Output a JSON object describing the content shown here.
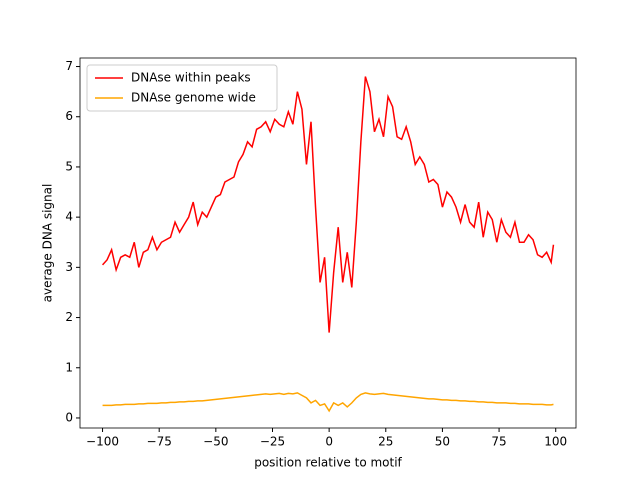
{
  "chart_data": {
    "type": "line",
    "xlabel": "position relative to motif",
    "ylabel": "average DNA signal",
    "x": [
      -100,
      -98,
      -96,
      -94,
      -92,
      -90,
      -88,
      -86,
      -84,
      -82,
      -80,
      -78,
      -76,
      -74,
      -72,
      -70,
      -68,
      -66,
      -64,
      -62,
      -60,
      -58,
      -56,
      -54,
      -52,
      -50,
      -48,
      -46,
      -44,
      -42,
      -40,
      -38,
      -36,
      -34,
      -32,
      -30,
      -28,
      -26,
      -24,
      -22,
      -20,
      -18,
      -16,
      -14,
      -12,
      -10,
      -8,
      -6,
      -4,
      -2,
      0,
      2,
      4,
      6,
      8,
      10,
      12,
      14,
      16,
      18,
      20,
      22,
      24,
      26,
      28,
      30,
      32,
      34,
      36,
      38,
      40,
      42,
      44,
      46,
      48,
      50,
      52,
      54,
      56,
      58,
      60,
      62,
      64,
      66,
      68,
      70,
      72,
      74,
      76,
      78,
      80,
      82,
      84,
      86,
      88,
      90,
      92,
      94,
      96,
      98,
      99
    ],
    "series": [
      {
        "name": "DNAse within peaks",
        "color": "#ff0000",
        "values": [
          3.05,
          3.15,
          3.35,
          2.95,
          3.2,
          3.25,
          3.2,
          3.5,
          3.0,
          3.3,
          3.35,
          3.6,
          3.35,
          3.5,
          3.55,
          3.6,
          3.9,
          3.7,
          3.85,
          4.0,
          4.3,
          3.85,
          4.1,
          4.0,
          4.2,
          4.4,
          4.45,
          4.7,
          4.75,
          4.8,
          5.1,
          5.25,
          5.5,
          5.4,
          5.75,
          5.8,
          5.9,
          5.7,
          5.95,
          5.85,
          5.8,
          6.1,
          5.85,
          6.5,
          6.15,
          5.05,
          5.9,
          4.2,
          2.7,
          3.2,
          1.7,
          2.9,
          3.8,
          2.7,
          3.3,
          2.6,
          3.9,
          5.5,
          6.8,
          6.5,
          5.7,
          5.95,
          5.6,
          6.4,
          6.2,
          5.6,
          5.55,
          5.8,
          5.5,
          5.05,
          5.2,
          5.05,
          4.7,
          4.75,
          4.65,
          4.2,
          4.5,
          4.4,
          4.2,
          3.9,
          4.25,
          3.9,
          3.8,
          4.3,
          3.6,
          4.1,
          3.95,
          3.5,
          3.95,
          3.7,
          3.6,
          3.9,
          3.5,
          3.5,
          3.65,
          3.55,
          3.25,
          3.2,
          3.3,
          3.1,
          3.45
        ]
      },
      {
        "name": "DNAse genome wide",
        "color": "#ffa500",
        "values": [
          0.25,
          0.25,
          0.25,
          0.26,
          0.26,
          0.27,
          0.27,
          0.27,
          0.28,
          0.28,
          0.29,
          0.29,
          0.29,
          0.3,
          0.3,
          0.31,
          0.31,
          0.32,
          0.32,
          0.33,
          0.33,
          0.34,
          0.34,
          0.35,
          0.36,
          0.37,
          0.38,
          0.39,
          0.4,
          0.41,
          0.42,
          0.43,
          0.44,
          0.45,
          0.46,
          0.47,
          0.48,
          0.47,
          0.48,
          0.49,
          0.47,
          0.49,
          0.48,
          0.5,
          0.45,
          0.4,
          0.3,
          0.35,
          0.25,
          0.28,
          0.14,
          0.3,
          0.25,
          0.3,
          0.22,
          0.3,
          0.4,
          0.47,
          0.5,
          0.48,
          0.47,
          0.48,
          0.49,
          0.47,
          0.46,
          0.45,
          0.44,
          0.43,
          0.42,
          0.41,
          0.4,
          0.39,
          0.38,
          0.38,
          0.37,
          0.36,
          0.36,
          0.35,
          0.35,
          0.34,
          0.34,
          0.33,
          0.33,
          0.32,
          0.32,
          0.31,
          0.31,
          0.3,
          0.3,
          0.3,
          0.29,
          0.29,
          0.28,
          0.28,
          0.28,
          0.27,
          0.27,
          0.27,
          0.26,
          0.26,
          0.27
        ]
      }
    ],
    "xlim": [
      -109.95,
      108.95
    ],
    "xticks": [
      {
        "value": -100,
        "label": "−100"
      },
      {
        "value": -75,
        "label": "−75"
      },
      {
        "value": -50,
        "label": "−50"
      },
      {
        "value": -25,
        "label": "−25"
      },
      0,
      25,
      50,
      75,
      100
    ],
    "ylim": [
      -0.2,
      7.17
    ],
    "yticks": [
      0,
      1,
      2,
      3,
      4,
      5,
      6,
      7
    ],
    "legend": "upper left"
  }
}
